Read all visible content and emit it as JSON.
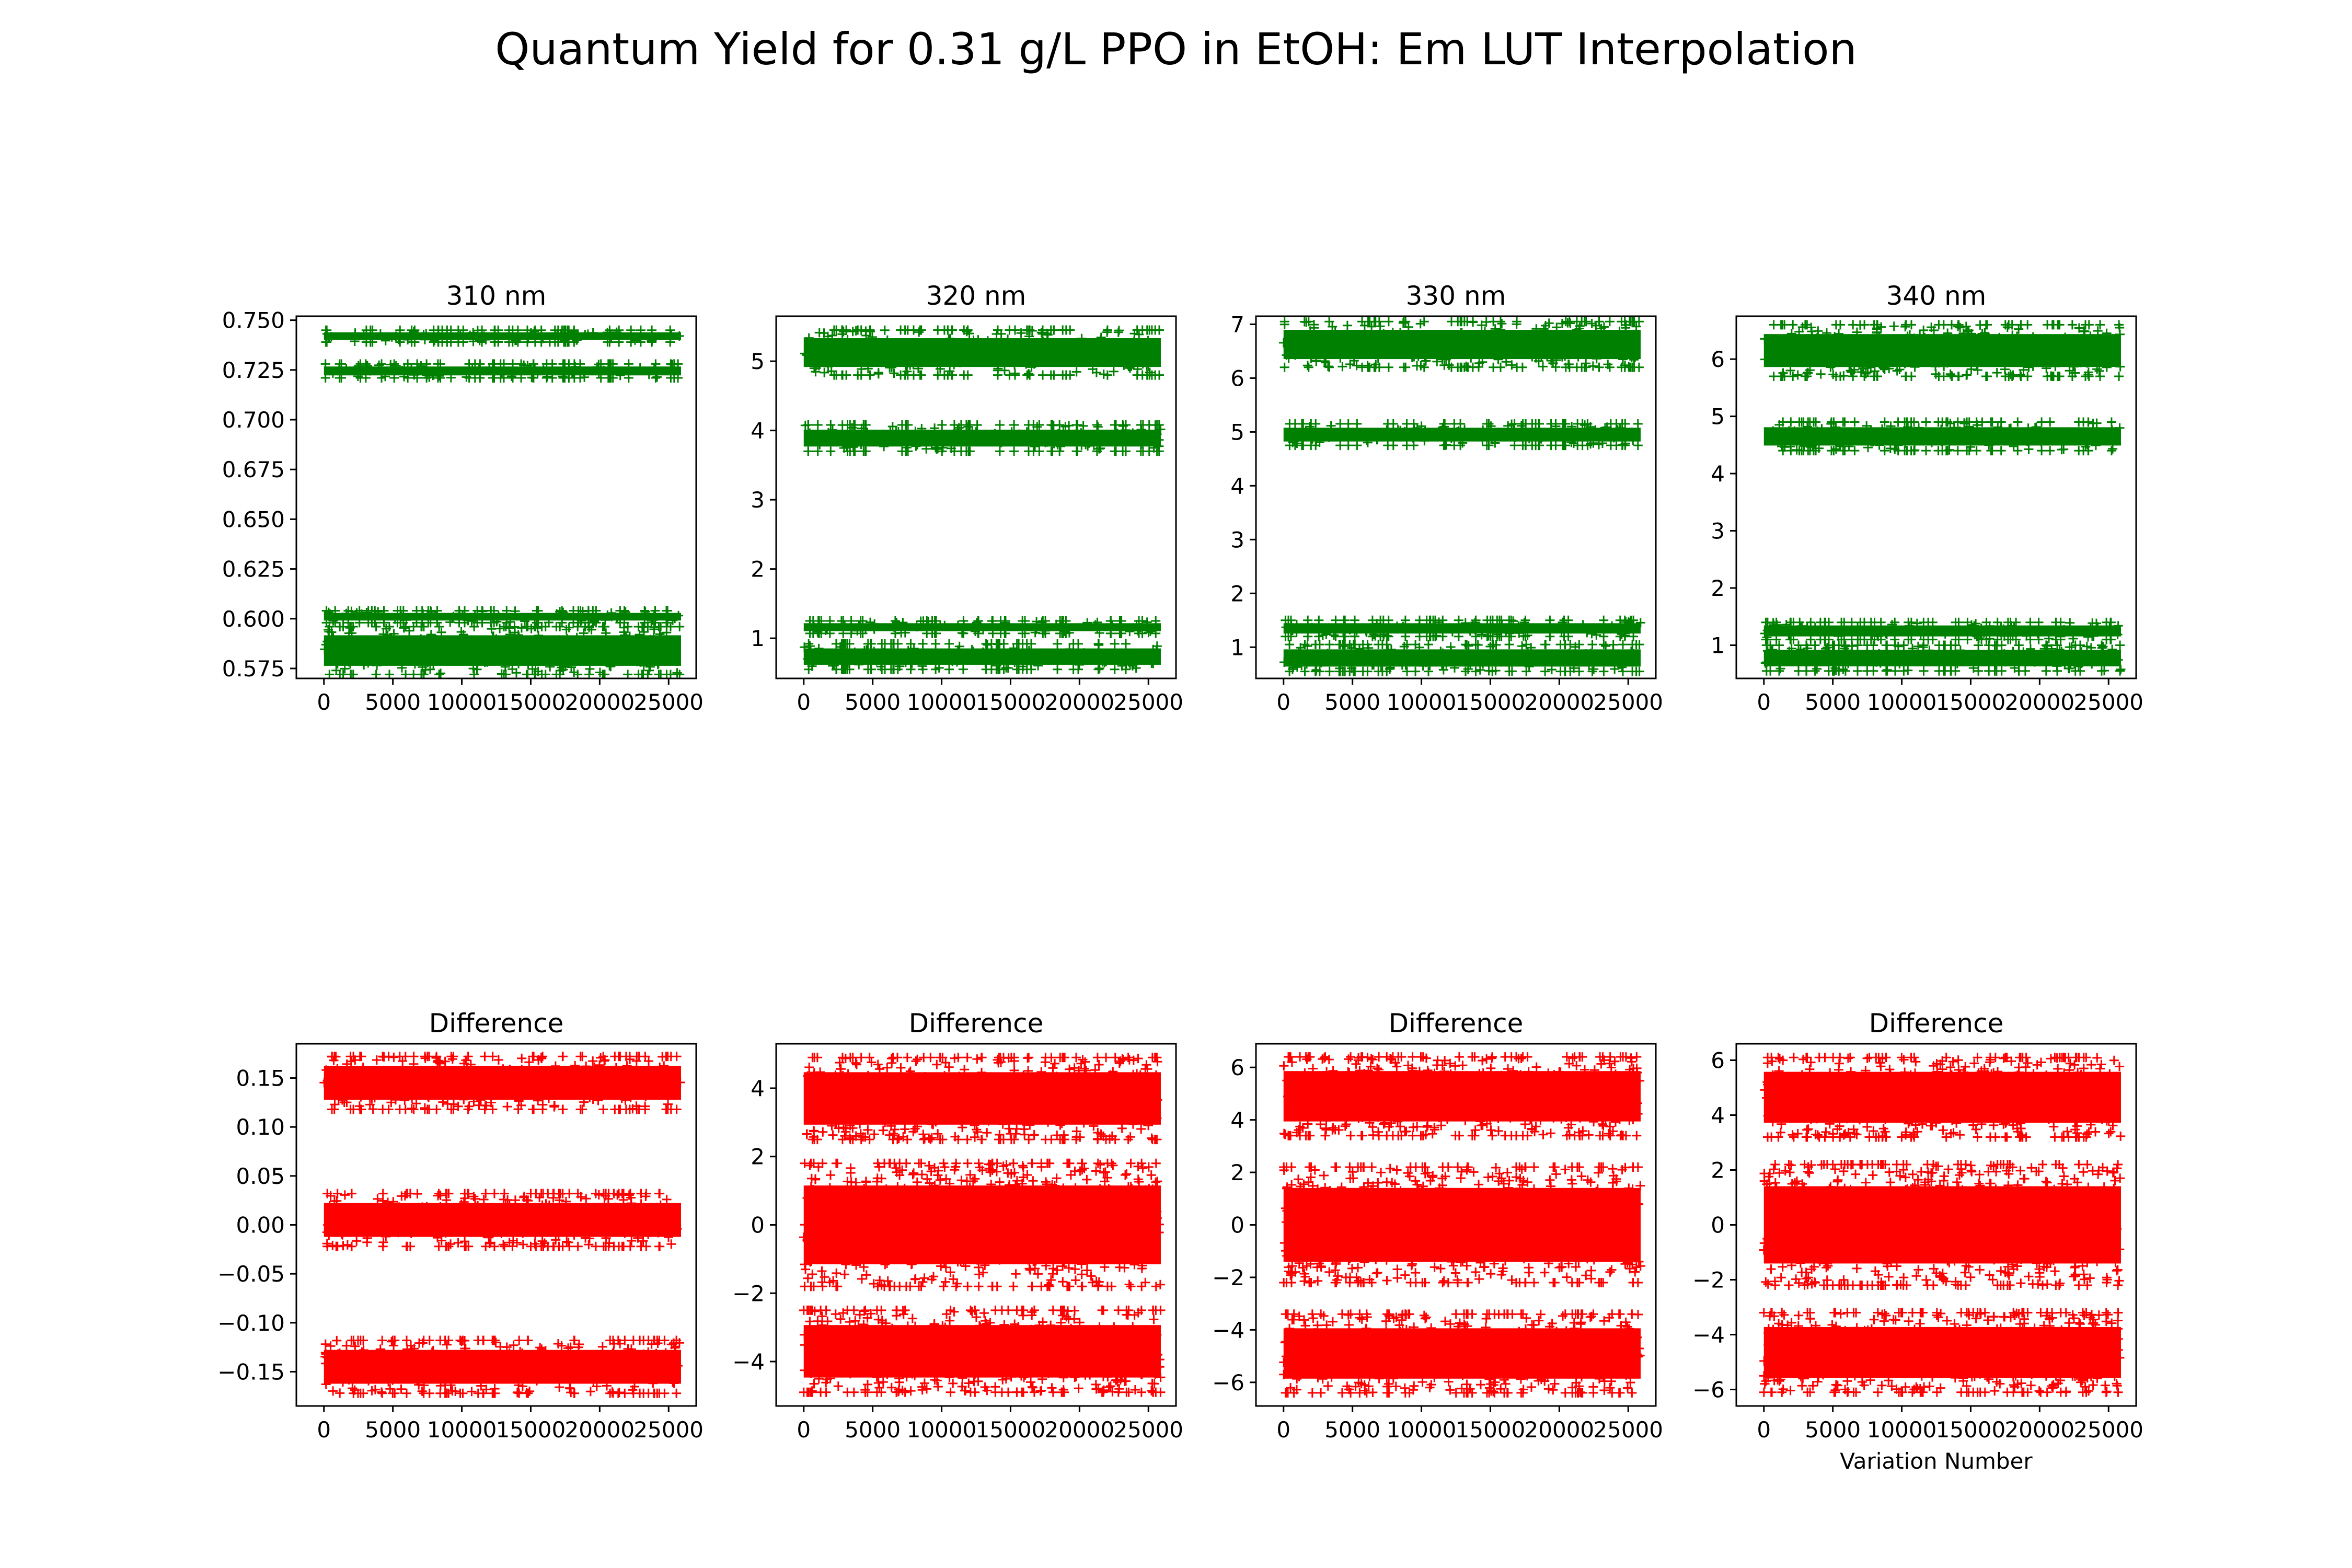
{
  "figure": {
    "title": "Quantum Yield for 0.31 g/L PPO in EtOH: Em LUT Interpolation"
  },
  "colors": {
    "top_series": "#008000",
    "bottom_series": "#ff0000"
  },
  "chart_data": [
    {
      "type": "scatter",
      "marker": "+",
      "color": "#008000",
      "title": "310 nm",
      "xlabel": "",
      "ylabel": "",
      "xlim": [
        -2000,
        27000
      ],
      "ylim": [
        0.57,
        0.752
      ],
      "xticks": [
        0,
        5000,
        10000,
        15000,
        20000,
        25000
      ],
      "xtick_labels": [
        "0",
        "5000",
        "10000",
        "15000",
        "20000",
        "25000"
      ],
      "yticks": [
        0.575,
        0.6,
        0.625,
        0.65,
        0.675,
        0.7,
        0.725,
        0.75
      ],
      "ytick_labels": [
        "0.575",
        "0.600",
        "0.625",
        "0.650",
        "0.675",
        "0.700",
        "0.725",
        "0.750"
      ],
      "x_range": [
        0,
        25900
      ],
      "bands": [
        {
          "low": 0.739,
          "high": 0.745
        },
        {
          "low": 0.721,
          "high": 0.728
        },
        {
          "low": 0.598,
          "high": 0.604
        },
        {
          "low": 0.572,
          "high": 0.596
        }
      ]
    },
    {
      "type": "scatter",
      "marker": "+",
      "color": "#008000",
      "title": "320 nm",
      "xlabel": "",
      "ylabel": "",
      "xlim": [
        -2000,
        27000
      ],
      "ylim": [
        0.42,
        5.65
      ],
      "xticks": [
        0,
        5000,
        10000,
        15000,
        20000,
        25000
      ],
      "xtick_labels": [
        "0",
        "5000",
        "10000",
        "15000",
        "20000",
        "25000"
      ],
      "yticks": [
        1,
        2,
        3,
        4,
        5
      ],
      "ytick_labels": [
        "1",
        "2",
        "3",
        "4",
        "5"
      ],
      "x_range": [
        0,
        25900
      ],
      "bands": [
        {
          "low": 4.8,
          "high": 5.45
        },
        {
          "low": 3.7,
          "high": 4.08
        },
        {
          "low": 1.07,
          "high": 1.25
        },
        {
          "low": 0.55,
          "high": 0.92
        }
      ]
    },
    {
      "type": "scatter",
      "marker": "+",
      "color": "#008000",
      "title": "330 nm",
      "xlabel": "",
      "ylabel": "",
      "xlim": [
        -2000,
        27000
      ],
      "ylim": [
        0.42,
        7.15
      ],
      "xticks": [
        0,
        5000,
        10000,
        15000,
        20000,
        25000
      ],
      "xtick_labels": [
        "0",
        "5000",
        "10000",
        "15000",
        "20000",
        "25000"
      ],
      "yticks": [
        1,
        2,
        3,
        4,
        5,
        6,
        7
      ],
      "ytick_labels": [
        "1",
        "2",
        "3",
        "4",
        "5",
        "6",
        "7"
      ],
      "x_range": [
        0,
        25900
      ],
      "bands": [
        {
          "low": 6.2,
          "high": 7.05
        },
        {
          "low": 4.75,
          "high": 5.15
        },
        {
          "low": 1.2,
          "high": 1.5
        },
        {
          "low": 0.55,
          "high": 1.05
        }
      ]
    },
    {
      "type": "scatter",
      "marker": "+",
      "color": "#008000",
      "title": "340 nm",
      "xlabel": "",
      "ylabel": "",
      "xlim": [
        -2000,
        27000
      ],
      "ylim": [
        0.42,
        6.75
      ],
      "xticks": [
        0,
        5000,
        10000,
        15000,
        20000,
        25000
      ],
      "xtick_labels": [
        "0",
        "5000",
        "10000",
        "15000",
        "20000",
        "25000"
      ],
      "yticks": [
        1,
        2,
        3,
        4,
        5,
        6
      ],
      "ytick_labels": [
        "1",
        "2",
        "3",
        "4",
        "5",
        "6"
      ],
      "x_range": [
        0,
        25900
      ],
      "bands": [
        {
          "low": 5.7,
          "high": 6.6
        },
        {
          "low": 4.4,
          "high": 4.9
        },
        {
          "low": 1.1,
          "high": 1.4
        },
        {
          "low": 0.55,
          "high": 1.0
        }
      ]
    },
    {
      "type": "scatter",
      "marker": "+",
      "color": "#ff0000",
      "title": "Difference",
      "xlabel": "",
      "ylabel": "",
      "xlim": [
        -2000,
        27000
      ],
      "ylim": [
        -0.185,
        0.185
      ],
      "xticks": [
        0,
        5000,
        10000,
        15000,
        20000,
        25000
      ],
      "xtick_labels": [
        "0",
        "5000",
        "10000",
        "15000",
        "20000",
        "25000"
      ],
      "yticks": [
        -0.15,
        -0.1,
        -0.05,
        0.0,
        0.05,
        0.1,
        0.15
      ],
      "ytick_labels": [
        "−0.15",
        "−0.10",
        "−0.05",
        "0.00",
        "0.05",
        "0.10",
        "0.15"
      ],
      "x_range": [
        0,
        25900
      ],
      "bands": [
        {
          "low": 0.118,
          "high": 0.172
        },
        {
          "low": -0.022,
          "high": 0.032
        },
        {
          "low": -0.172,
          "high": -0.118
        }
      ]
    },
    {
      "type": "scatter",
      "marker": "+",
      "color": "#ff0000",
      "title": "Difference",
      "xlabel": "",
      "ylabel": "",
      "xlim": [
        -2000,
        27000
      ],
      "ylim": [
        -5.3,
        5.3
      ],
      "xticks": [
        0,
        5000,
        10000,
        15000,
        20000,
        25000
      ],
      "xtick_labels": [
        "0",
        "5000",
        "10000",
        "15000",
        "20000",
        "25000"
      ],
      "yticks": [
        -4,
        -2,
        0,
        2,
        4
      ],
      "ytick_labels": [
        "−4",
        "−2",
        "0",
        "2",
        "4"
      ],
      "x_range": [
        0,
        25900
      ],
      "bands": [
        {
          "low": 2.5,
          "high": 4.9
        },
        {
          "low": -1.8,
          "high": 1.8
        },
        {
          "low": -4.9,
          "high": -2.5
        }
      ]
    },
    {
      "type": "scatter",
      "marker": "+",
      "color": "#ff0000",
      "title": "Difference",
      "xlabel": "",
      "ylabel": "",
      "xlim": [
        -2000,
        27000
      ],
      "ylim": [
        -6.9,
        6.9
      ],
      "xticks": [
        0,
        5000,
        10000,
        15000,
        20000,
        25000
      ],
      "xtick_labels": [
        "0",
        "5000",
        "10000",
        "15000",
        "20000",
        "25000"
      ],
      "yticks": [
        -6,
        -4,
        -2,
        0,
        2,
        4,
        6
      ],
      "ytick_labels": [
        "−6",
        "−4",
        "−2",
        "0",
        "2",
        "4",
        "6"
      ],
      "x_range": [
        0,
        25900
      ],
      "bands": [
        {
          "low": 3.4,
          "high": 6.4
        },
        {
          "low": -2.2,
          "high": 2.2
        },
        {
          "low": -6.4,
          "high": -3.4
        }
      ]
    },
    {
      "type": "scatter",
      "marker": "+",
      "color": "#ff0000",
      "title": "Difference",
      "xlabel": "Variation Number",
      "ylabel": "",
      "xlim": [
        -2000,
        27000
      ],
      "ylim": [
        -6.6,
        6.6
      ],
      "xticks": [
        0,
        5000,
        10000,
        15000,
        20000,
        25000
      ],
      "xtick_labels": [
        "0",
        "5000",
        "10000",
        "15000",
        "20000",
        "25000"
      ],
      "yticks": [
        -6,
        -4,
        -2,
        0,
        2,
        4,
        6
      ],
      "ytick_labels": [
        "−6",
        "−4",
        "−2",
        "0",
        "2",
        "4",
        "6"
      ],
      "x_range": [
        0,
        25900
      ],
      "bands": [
        {
          "low": 3.2,
          "high": 6.1
        },
        {
          "low": -2.2,
          "high": 2.2
        },
        {
          "low": -6.1,
          "high": -3.2
        }
      ]
    }
  ]
}
